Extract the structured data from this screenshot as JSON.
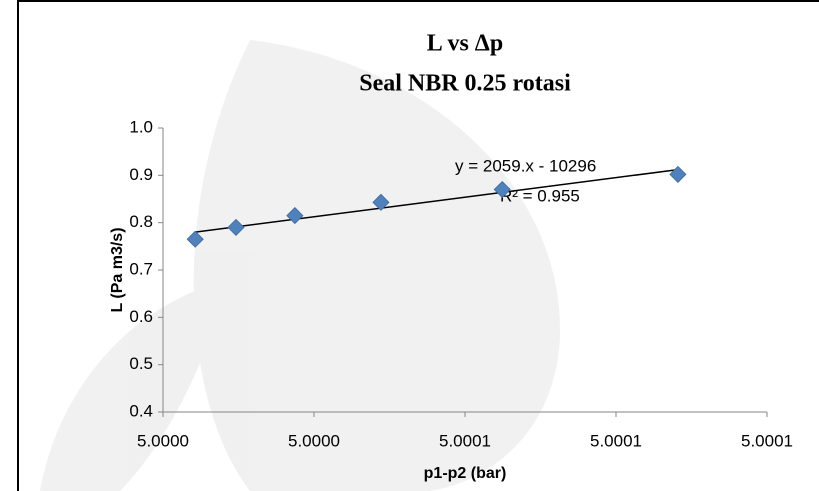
{
  "chart_data": {
    "type": "scatter",
    "title": "L vs Δp",
    "subtitle": "Seal NBR 0.25 rotasi",
    "x_label": "p1-p2 (bar)",
    "y_label": "L (Pa m3/s)",
    "annotations": [
      "y = 2059.x - 10296",
      "R² = 0.955"
    ],
    "trendline": "linear",
    "grid": false,
    "series": [
      {
        "color": "#4f81bd",
        "x": [
          5.0000064,
          5.0000145,
          5.0000262,
          5.0000433,
          5.0000674,
          5.0001023
        ],
        "values": [
          0.765,
          0.79,
          0.815,
          0.843,
          0.87,
          0.902
        ]
      }
    ],
    "xlim": [
      5.0,
      5.00012
    ],
    "xticks": [
      {
        "value": 5.0,
        "label": "5.0000"
      },
      {
        "value": 5.00003,
        "label": "5.0000"
      },
      {
        "value": 5.00006,
        "label": "5.0001"
      },
      {
        "value": 5.00009,
        "label": "5.0001"
      },
      {
        "value": 5.00012,
        "label": "5.0001"
      }
    ],
    "ylim": [
      0.4,
      1.0
    ],
    "yticks": [
      {
        "value": 0.4,
        "label": "0.4"
      },
      {
        "value": 0.5,
        "label": "0.5"
      },
      {
        "value": 0.6,
        "label": "0.6"
      },
      {
        "value": 0.7,
        "label": "0.7"
      },
      {
        "value": 0.8,
        "label": "0.8"
      },
      {
        "value": 0.9,
        "label": "0.9"
      },
      {
        "value": 1.0,
        "label": "1.0"
      }
    ]
  }
}
